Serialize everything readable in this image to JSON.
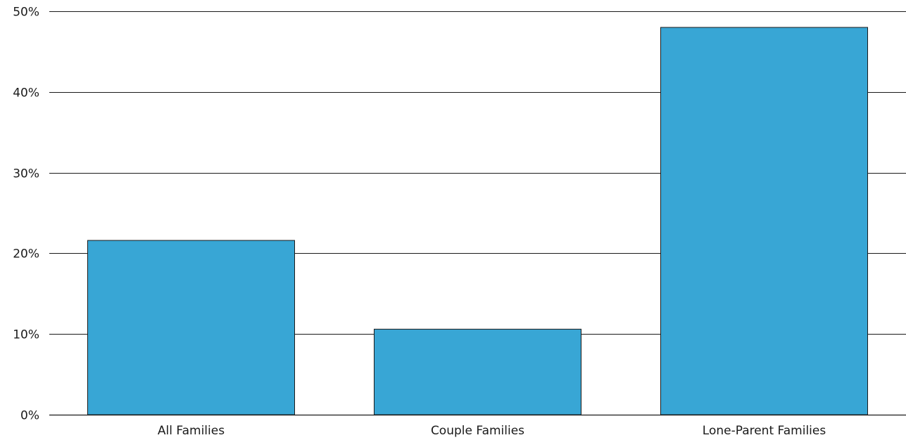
{
  "chart_data": {
    "type": "bar",
    "title": "",
    "xlabel": "",
    "ylabel": "",
    "categories": [
      "All Families",
      "Couple Families",
      "Lone-Parent Families"
    ],
    "series": [
      {
        "values": [
          21.6,
          10.6,
          48.0
        ]
      }
    ],
    "ylim": [
      0,
      50
    ],
    "yticks": [
      0,
      10,
      20,
      30,
      40,
      50
    ],
    "ytick_labels": [
      "0%",
      "10%",
      "20%",
      "30%",
      "40%",
      "50%"
    ],
    "grid": true,
    "legend": "none",
    "colors": {
      "bar": "#38a6d5",
      "grid": "#1a1a1a"
    }
  }
}
